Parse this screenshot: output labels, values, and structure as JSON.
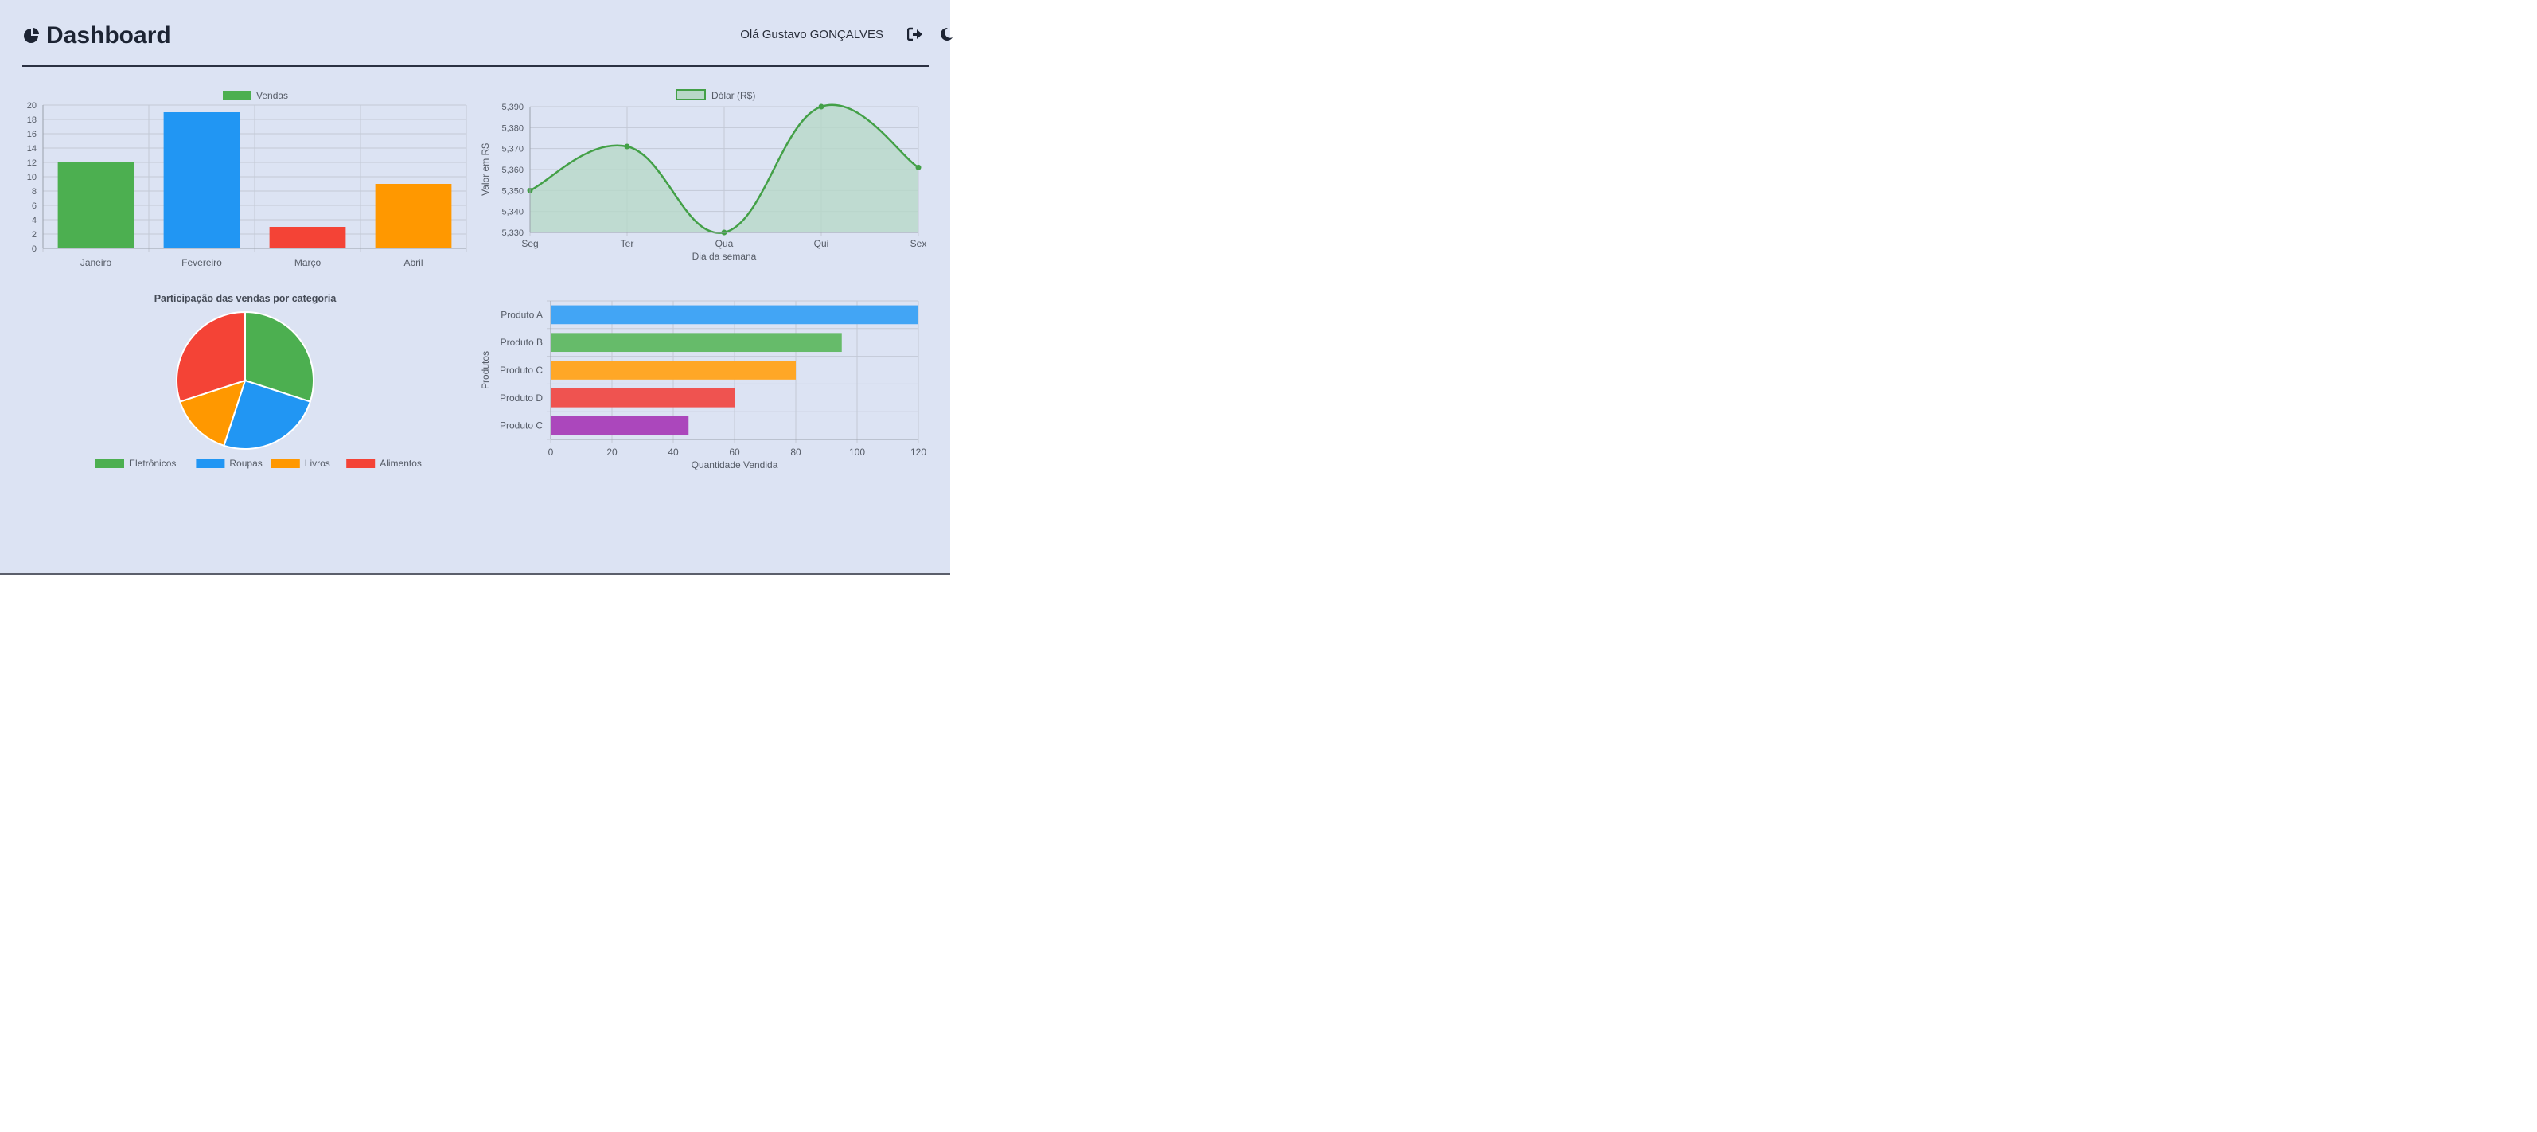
{
  "header": {
    "title": "Dashboard",
    "brand_icon": "chart-pie-icon",
    "user_greeting": "Olá Gustavo GONÇALVES",
    "logout_icon": "logout-icon",
    "theme_icon": "moon-icon"
  },
  "colors": {
    "background": "#dce3f3",
    "text": "#1d2433",
    "green": "#4caf50",
    "blue": "#2196f3",
    "red": "#f44336",
    "orange": "#ff9800",
    "purple": "#ab47bc"
  },
  "chart_data": [
    {
      "type": "bar",
      "legend": [
        "Vendas"
      ],
      "categories": [
        "Janeiro",
        "Fevereiro",
        "Março",
        "Abril"
      ],
      "values": [
        12,
        19,
        3,
        9
      ],
      "bar_colors": [
        "#4caf50",
        "#2196f3",
        "#f44336",
        "#ff9800"
      ],
      "ylim": [
        0,
        20
      ],
      "yticks": [
        0,
        2,
        4,
        6,
        8,
        10,
        12,
        14,
        16,
        18,
        20
      ],
      "grid": true,
      "legend_position": "top-center"
    },
    {
      "type": "area",
      "legend": [
        "Dólar (R$)"
      ],
      "categories": [
        "Seg",
        "Ter",
        "Qua",
        "Qui",
        "Sex"
      ],
      "values": [
        5.35,
        5.371,
        5.33,
        5.39,
        5.361
      ],
      "xlabel": "Dia da semana",
      "ylabel": "Valor em R$",
      "ylim": [
        5.33,
        5.39
      ],
      "yticks": [
        "5,330",
        "5,340",
        "5,350",
        "5,360",
        "5,370",
        "5,380",
        "5,390"
      ],
      "line_color": "#43a047",
      "fill_color": "#b8d8c8",
      "grid": true,
      "legend_position": "top-center"
    },
    {
      "type": "pie",
      "title": "Participação das vendas por categoria",
      "labels": [
        "Eletrônicos",
        "Roupas",
        "Livros",
        "Alimentos"
      ],
      "values": [
        30,
        25,
        15,
        30
      ],
      "slice_colors": [
        "#4caf50",
        "#2196f3",
        "#ff9800",
        "#f44336"
      ],
      "legend_position": "bottom"
    },
    {
      "type": "bar",
      "orientation": "horizontal",
      "categories": [
        "Produto A",
        "Produto B",
        "Produto C",
        "Produto D",
        "Produto C"
      ],
      "values": [
        120,
        95,
        80,
        60,
        45
      ],
      "bar_colors": [
        "#42a5f5",
        "#66bb6a",
        "#ffa726",
        "#ef5350",
        "#ab47bc"
      ],
      "xlabel": "Quantidade Vendida",
      "ylabel": "Produtos",
      "xlim": [
        0,
        120
      ],
      "xticks": [
        0,
        20,
        40,
        60,
        80,
        100,
        120
      ],
      "grid": true
    }
  ]
}
